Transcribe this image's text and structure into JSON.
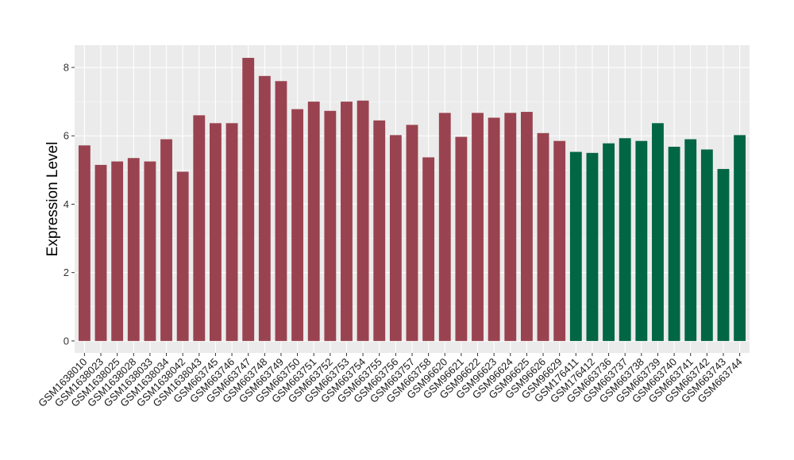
{
  "chart_data": {
    "type": "bar",
    "title": "",
    "xlabel": "",
    "ylabel": "Expression Level",
    "ylim": [
      -0.35,
      8.65
    ],
    "yticks": [
      0,
      2,
      4,
      6,
      8
    ],
    "grid": true,
    "legend": "none",
    "categories": [
      "GSM1638010",
      "GSM1638023",
      "GSM1638025",
      "GSM1638028",
      "GSM1638033",
      "GSM1638034",
      "GSM1638042",
      "GSM1638043",
      "GSM663745",
      "GSM663746",
      "GSM663747",
      "GSM663748",
      "GSM663749",
      "GSM663750",
      "GSM663751",
      "GSM663752",
      "GSM663753",
      "GSM663754",
      "GSM663755",
      "GSM663756",
      "GSM663757",
      "GSM663758",
      "GSM96620",
      "GSM96621",
      "GSM96622",
      "GSM96623",
      "GSM96624",
      "GSM96625",
      "GSM96626",
      "GSM96629",
      "GSM176411",
      "GSM176412",
      "GSM663736",
      "GSM663737",
      "GSM663738",
      "GSM663739",
      "GSM663740",
      "GSM663741",
      "GSM663742",
      "GSM663743",
      "GSM663744"
    ],
    "values": [
      5.72,
      5.15,
      5.25,
      5.35,
      5.25,
      5.9,
      4.95,
      6.6,
      6.37,
      6.37,
      8.28,
      7.75,
      7.6,
      6.78,
      7.0,
      6.73,
      7.0,
      7.03,
      6.45,
      6.02,
      6.32,
      5.37,
      6.67,
      5.97,
      6.67,
      6.53,
      6.67,
      6.7,
      6.08,
      5.85,
      5.53,
      5.5,
      5.78,
      5.93,
      5.85,
      6.37,
      5.68,
      5.9,
      5.6,
      5.03,
      6.02
    ],
    "group_sizes": [
      30,
      11
    ],
    "colors": [
      "#9a4350",
      "#006644"
    ],
    "panel_background": "#ebebeb",
    "gridline_color": "#ffffff"
  }
}
